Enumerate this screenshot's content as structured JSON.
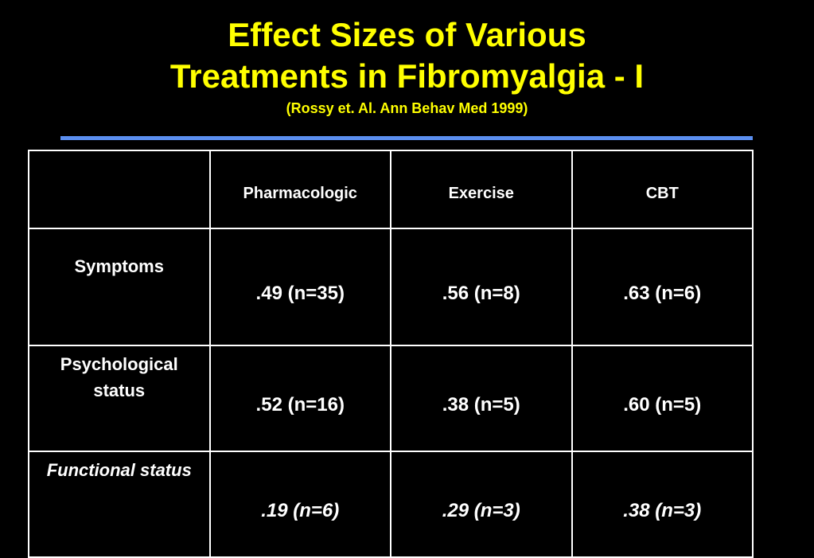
{
  "header": {
    "title_lines": [
      "Effect Sizes of Various",
      "Treatments in Fibromyalgia - I"
    ],
    "subtitle": "(Rossy et. Al. Ann Behav Med 1999)"
  },
  "table": {
    "columns": [
      "Pharmacologic",
      "Exercise",
      "CBT"
    ],
    "rows": [
      {
        "label": "Symptoms",
        "cells": [
          ".49 (n=35)",
          ".56 (n=8)",
          ".63 (n=6)"
        ]
      },
      {
        "label": "Psychological status",
        "cells": [
          ".52 (n=16)",
          ".38 (n=5)",
          ".60 (n=5)"
        ]
      },
      {
        "label": "Functional status",
        "cells": [
          ".19 (n=6)",
          ".29 (n=3)",
          ".38 (n=3)"
        ]
      }
    ]
  }
}
